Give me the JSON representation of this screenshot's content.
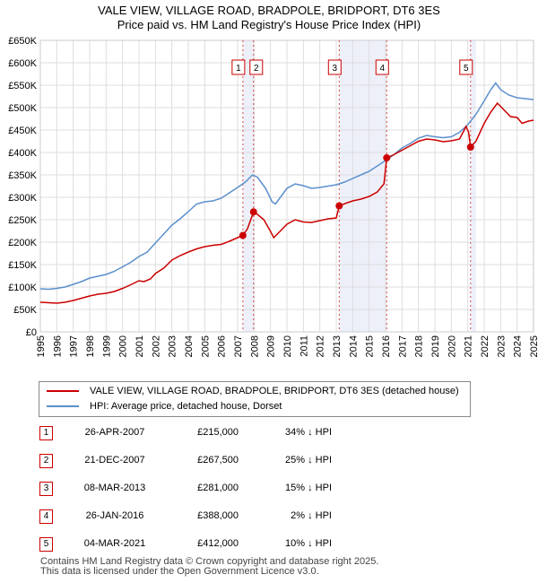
{
  "title_line1": "VALE VIEW, VILLAGE ROAD, BRADPOLE, BRIDPORT, DT6 3ES",
  "title_line2": "Price paid vs. HM Land Registry's House Price Index (HPI)",
  "chart_data": {
    "type": "line",
    "title": "VALE VIEW, VILLAGE ROAD, BRADPOLE, BRIDPORT, DT6 3ES",
    "subtitle": "Price paid vs. HM Land Registry's House Price Index (HPI)",
    "xlim": [
      1995,
      2025
    ],
    "ylim": [
      0,
      650000
    ],
    "y_ticks": [
      0,
      50000,
      100000,
      150000,
      200000,
      250000,
      300000,
      350000,
      400000,
      450000,
      500000,
      550000,
      600000,
      650000
    ],
    "y_tick_labels": [
      "£0",
      "£50K",
      "£100K",
      "£150K",
      "£200K",
      "£250K",
      "£300K",
      "£350K",
      "£400K",
      "£450K",
      "£500K",
      "£550K",
      "£600K",
      "£650K"
    ],
    "x_ticks": [
      "1995",
      "1996",
      "1997",
      "1998",
      "1999",
      "2000",
      "2001",
      "2002",
      "2003",
      "2004",
      "2005",
      "2006",
      "2007",
      "2008",
      "2009",
      "2010",
      "2011",
      "2012",
      "2013",
      "2014",
      "2015",
      "2016",
      "2017",
      "2018",
      "2019",
      "2020",
      "2021",
      "2022",
      "2023",
      "2024",
      "2025"
    ],
    "grid": true,
    "legend_position": "bottom",
    "series": [
      {
        "name": "VALE VIEW, VILLAGE ROAD, BRADPOLE, BRIDPORT, DT6 3ES (detached house)",
        "color": "#cc0000",
        "points": [
          [
            1995.0,
            66000
          ],
          [
            1995.5,
            65000
          ],
          [
            1996.0,
            64000
          ],
          [
            1996.5,
            66000
          ],
          [
            1997.0,
            70000
          ],
          [
            1997.5,
            75000
          ],
          [
            1998.0,
            80000
          ],
          [
            1998.5,
            84000
          ],
          [
            1999.0,
            86000
          ],
          [
            1999.5,
            90000
          ],
          [
            2000.0,
            97000
          ],
          [
            2000.5,
            105000
          ],
          [
            2001.0,
            114000
          ],
          [
            2001.3,
            112000
          ],
          [
            2001.7,
            118000
          ],
          [
            2002.0,
            130000
          ],
          [
            2002.5,
            142000
          ],
          [
            2003.0,
            160000
          ],
          [
            2003.5,
            170000
          ],
          [
            2004.0,
            178000
          ],
          [
            2004.5,
            185000
          ],
          [
            2005.0,
            190000
          ],
          [
            2005.5,
            193000
          ],
          [
            2006.0,
            195000
          ],
          [
            2006.5,
            202000
          ],
          [
            2007.0,
            210000
          ],
          [
            2007.32,
            215000
          ],
          [
            2007.6,
            230000
          ],
          [
            2007.97,
            267500
          ],
          [
            2008.2,
            262000
          ],
          [
            2008.6,
            250000
          ],
          [
            2009.0,
            224000
          ],
          [
            2009.2,
            210000
          ],
          [
            2009.6,
            225000
          ],
          [
            2010.0,
            240000
          ],
          [
            2010.5,
            250000
          ],
          [
            2011.0,
            245000
          ],
          [
            2011.5,
            244000
          ],
          [
            2012.0,
            248000
          ],
          [
            2012.5,
            252000
          ],
          [
            2013.0,
            254000
          ],
          [
            2013.18,
            281000
          ],
          [
            2013.6,
            287000
          ],
          [
            2014.0,
            292000
          ],
          [
            2014.5,
            296000
          ],
          [
            2015.0,
            302000
          ],
          [
            2015.5,
            312000
          ],
          [
            2015.9,
            330000
          ],
          [
            2016.07,
            388000
          ],
          [
            2016.5,
            395000
          ],
          [
            2017.0,
            405000
          ],
          [
            2017.5,
            415000
          ],
          [
            2018.0,
            425000
          ],
          [
            2018.5,
            430000
          ],
          [
            2019.0,
            428000
          ],
          [
            2019.5,
            424000
          ],
          [
            2020.0,
            426000
          ],
          [
            2020.5,
            430000
          ],
          [
            2020.9,
            458000
          ],
          [
            2021.05,
            445000
          ],
          [
            2021.17,
            412000
          ],
          [
            2021.5,
            425000
          ],
          [
            2022.0,
            465000
          ],
          [
            2022.4,
            490000
          ],
          [
            2022.8,
            510000
          ],
          [
            2023.2,
            495000
          ],
          [
            2023.6,
            480000
          ],
          [
            2024.0,
            478000
          ],
          [
            2024.3,
            465000
          ],
          [
            2024.7,
            470000
          ],
          [
            2025.0,
            472000
          ]
        ]
      },
      {
        "name": "HPI: Average price, detached house, Dorset",
        "color": "#5b8fcc",
        "points": [
          [
            1995.0,
            96000
          ],
          [
            1995.5,
            95000
          ],
          [
            1996.0,
            97000
          ],
          [
            1996.5,
            100000
          ],
          [
            1997.0,
            106000
          ],
          [
            1997.5,
            112000
          ],
          [
            1998.0,
            120000
          ],
          [
            1998.5,
            124000
          ],
          [
            1999.0,
            128000
          ],
          [
            1999.5,
            135000
          ],
          [
            2000.0,
            145000
          ],
          [
            2000.5,
            155000
          ],
          [
            2001.0,
            168000
          ],
          [
            2001.5,
            178000
          ],
          [
            2002.0,
            198000
          ],
          [
            2002.5,
            218000
          ],
          [
            2003.0,
            238000
          ],
          [
            2003.5,
            252000
          ],
          [
            2004.0,
            268000
          ],
          [
            2004.5,
            285000
          ],
          [
            2005.0,
            290000
          ],
          [
            2005.5,
            292000
          ],
          [
            2006.0,
            298000
          ],
          [
            2006.5,
            310000
          ],
          [
            2007.0,
            322000
          ],
          [
            2007.5,
            335000
          ],
          [
            2007.9,
            350000
          ],
          [
            2008.2,
            345000
          ],
          [
            2008.7,
            320000
          ],
          [
            2009.1,
            290000
          ],
          [
            2009.3,
            285000
          ],
          [
            2009.7,
            305000
          ],
          [
            2010.0,
            320000
          ],
          [
            2010.5,
            330000
          ],
          [
            2011.0,
            326000
          ],
          [
            2011.5,
            320000
          ],
          [
            2012.0,
            322000
          ],
          [
            2012.5,
            325000
          ],
          [
            2013.0,
            328000
          ],
          [
            2013.5,
            334000
          ],
          [
            2014.0,
            342000
          ],
          [
            2014.5,
            350000
          ],
          [
            2015.0,
            358000
          ],
          [
            2015.5,
            370000
          ],
          [
            2016.0,
            382000
          ],
          [
            2016.5,
            395000
          ],
          [
            2017.0,
            410000
          ],
          [
            2017.5,
            420000
          ],
          [
            2018.0,
            432000
          ],
          [
            2018.5,
            438000
          ],
          [
            2019.0,
            435000
          ],
          [
            2019.5,
            433000
          ],
          [
            2020.0,
            435000
          ],
          [
            2020.5,
            445000
          ],
          [
            2021.0,
            462000
          ],
          [
            2021.5,
            485000
          ],
          [
            2022.0,
            515000
          ],
          [
            2022.4,
            540000
          ],
          [
            2022.7,
            555000
          ],
          [
            2023.0,
            540000
          ],
          [
            2023.5,
            528000
          ],
          [
            2024.0,
            522000
          ],
          [
            2024.5,
            520000
          ],
          [
            2025.0,
            518000
          ]
        ]
      }
    ],
    "sales": [
      {
        "id": "1",
        "x": 2007.32,
        "price": 215000
      },
      {
        "id": "2",
        "x": 2007.97,
        "price": 267500
      },
      {
        "id": "3",
        "x": 2013.18,
        "price": 281000
      },
      {
        "id": "4",
        "x": 2016.07,
        "price": 388000
      },
      {
        "id": "5",
        "x": 2021.17,
        "price": 412000
      }
    ],
    "shaded_spans": [
      [
        2007.32,
        2007.97
      ],
      [
        2013.18,
        2016.07
      ],
      [
        2021.17,
        2021.5
      ],
      [
        2024.95,
        2025.0
      ]
    ]
  },
  "legend": {
    "property_label": "VALE VIEW, VILLAGE ROAD, BRADPOLE, BRIDPORT, DT6 3ES (detached house)",
    "hpi_label": "HPI: Average price, detached house, Dorset",
    "property_color": "#cc0000",
    "hpi_color": "#5b8fcc"
  },
  "transactions": [
    {
      "num": "1",
      "date": "26-APR-2007",
      "price": "£215,000",
      "hpi": "34% ↓ HPI"
    },
    {
      "num": "2",
      "date": "21-DEC-2007",
      "price": "£267,500",
      "hpi": "25% ↓ HPI"
    },
    {
      "num": "3",
      "date": "08-MAR-2013",
      "price": "£281,000",
      "hpi": "15% ↓ HPI"
    },
    {
      "num": "4",
      "date": "26-JAN-2016",
      "price": "£388,000",
      "hpi": "2% ↓ HPI"
    },
    {
      "num": "5",
      "date": "04-MAR-2021",
      "price": "£412,000",
      "hpi": "10% ↓ HPI"
    }
  ],
  "footer": {
    "line1": "Contains HM Land Registry data © Crown copyright and database right 2025.",
    "line2": "This data is licensed under the Open Government Licence v3.0."
  }
}
